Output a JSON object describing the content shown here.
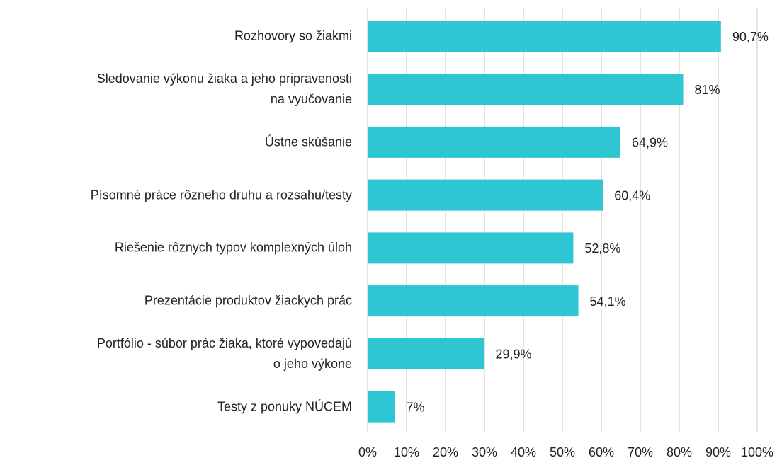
{
  "chart_data": {
    "type": "bar",
    "orientation": "horizontal",
    "categories": [
      "Rozhovory so žiakmi",
      "Sledovanie výkonu žiaka a jeho pripravenosti\nna vyučovanie",
      "Ústne skúšanie",
      "Písomné práce rôzneho druhu a rozsahu/testy",
      "Riešenie rôznych typov komplexných úloh",
      "Prezentácie produktov žiackych prác",
      "Portfólio - súbor prác žiaka, ktoré vypovedajú\no jeho výkone",
      "Testy z ponuky NÚCEM"
    ],
    "values": [
      90.7,
      81,
      64.9,
      60.4,
      52.8,
      54.1,
      29.9,
      7
    ],
    "value_labels": [
      "90,7%",
      "81%",
      "64,9%",
      "60,4%",
      "52,8%",
      "54,1%",
      "29,9%",
      "7%"
    ],
    "color": "#2ec6d2",
    "xlim": [
      0,
      100
    ],
    "xticks": [
      {
        "value": 0,
        "label": "0%"
      },
      {
        "value": 10,
        "label": "10%"
      },
      {
        "value": 20,
        "label": "20%"
      },
      {
        "value": 30,
        "label": "30%"
      },
      {
        "value": 40,
        "label": "40%"
      },
      {
        "value": 50,
        "label": "50%"
      },
      {
        "value": 60,
        "label": "60%"
      },
      {
        "value": 70,
        "label": "70%"
      },
      {
        "value": 80,
        "label": "80%"
      },
      {
        "value": 90,
        "label": "90%"
      },
      {
        "value": 100,
        "label": "100%"
      }
    ],
    "grid": true
  }
}
